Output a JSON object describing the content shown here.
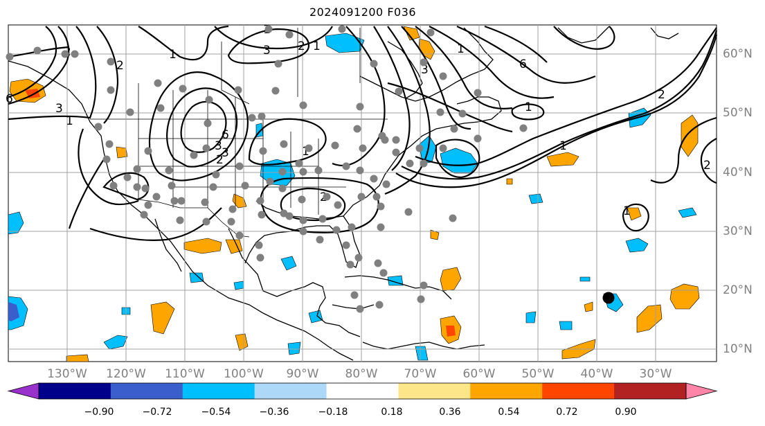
{
  "title": "2024091200 F036",
  "lat_labels": [
    "60°N",
    "50°N",
    "40°N",
    "30°N",
    "20°N",
    "10°N"
  ],
  "lon_labels": [
    "130°W",
    "120°W",
    "110°W",
    "100°W",
    "90°W",
    "80°W",
    "70°W",
    "60°W",
    "50°W",
    "40°W",
    "30°W"
  ],
  "colorbar": {
    "ticks": [
      "−0.90",
      "−0.72",
      "−0.54",
      "−0.36",
      "−0.18",
      "0.18",
      "0.36",
      "0.54",
      "0.72",
      "0.90"
    ],
    "colors": [
      "#9932cc",
      "#00008b",
      "#3a5fcd",
      "#00bfff",
      "#add8f7",
      "#ffffff",
      "#fde68a",
      "#ffa500",
      "#ff4500",
      "#b22222",
      "#ff85a8"
    ]
  },
  "contour_labels": [
    "1",
    "2",
    "3",
    "6",
    "1",
    "2",
    "3",
    "1",
    "2",
    "1",
    "3",
    "6",
    "3",
    "2",
    "1",
    "2",
    "3",
    "1",
    "6",
    "1",
    "2",
    "1",
    "1",
    "2"
  ],
  "colors": {
    "positive": "#ffa500",
    "positive_strong": "#ff4500",
    "negative": "#00bfff",
    "negative_strong": "#3a5fcd",
    "station_dot": "#808080",
    "grid": "#a0a0a0"
  }
}
